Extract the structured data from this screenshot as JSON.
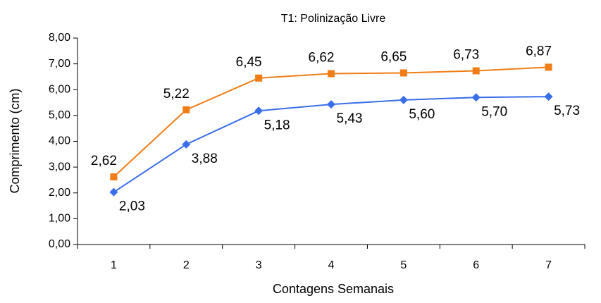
{
  "chart_data": {
    "type": "line",
    "title": "T1: Polinização Livre",
    "x_label": "Contagens Semanais",
    "y_label": "Comprimento (cm)",
    "categories": [
      "1",
      "2",
      "3",
      "4",
      "5",
      "6",
      "7"
    ],
    "series": [
      {
        "color": "#f07d17",
        "marker": "square",
        "values": [
          2.62,
          5.22,
          6.45,
          6.62,
          6.65,
          6.73,
          6.87
        ],
        "value_labels": [
          "2,62",
          "5,22",
          "6,45",
          "6,62",
          "6,65",
          "6,73",
          "6,87"
        ]
      },
      {
        "color": "#3a6ee8",
        "marker": "diamond",
        "values": [
          2.03,
          3.88,
          5.18,
          5.43,
          5.6,
          5.7,
          5.73
        ],
        "value_labels": [
          "2,03",
          "3,88",
          "5,18",
          "5,43",
          "5,60",
          "5,70",
          "5,73"
        ]
      }
    ],
    "ylim": [
      0,
      8
    ],
    "yticks": [
      {
        "value": 0,
        "label": "0,00"
      },
      {
        "value": 1,
        "label": "1,00"
      },
      {
        "value": 2,
        "label": "2,00"
      },
      {
        "value": 3,
        "label": "3,00"
      },
      {
        "value": 4,
        "label": "4,00"
      },
      {
        "value": 5,
        "label": "5,00"
      },
      {
        "value": 6,
        "label": "6,00"
      },
      {
        "value": 7,
        "label": "7,00"
      },
      {
        "value": 8,
        "label": "8,00"
      }
    ],
    "grid": false
  }
}
